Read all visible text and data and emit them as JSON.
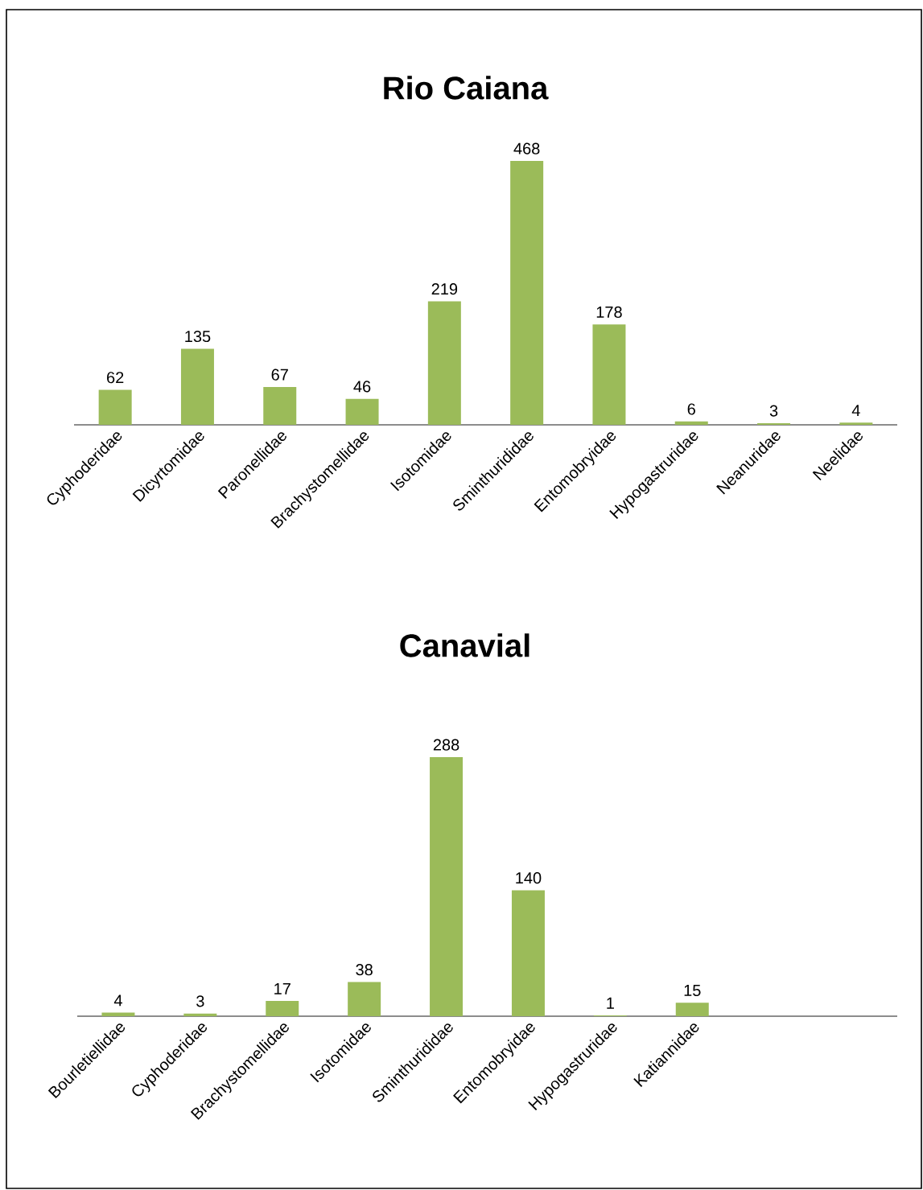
{
  "chart_data": [
    {
      "type": "bar",
      "title": "Rio Caiana",
      "categories": [
        "Cyphoderidae",
        "Dicyrtomidae",
        "Paronellidae",
        "Brachystomellidae",
        "Isotomidae",
        "Sminthurididae",
        "Entomobryidae",
        "Hypogastruridae",
        "Neanuridae",
        "Neelidae"
      ],
      "values": [
        62,
        135,
        67,
        46,
        219,
        468,
        178,
        6,
        3,
        4
      ],
      "color": "#9bbb59",
      "data_labels": true
    },
    {
      "type": "bar",
      "title": "Canavial",
      "categories": [
        "Bourletiellidae",
        "Cyphoderidae",
        "Brachystomellidae",
        "Isotomidae",
        "Sminthurididae",
        "Entomobryidae",
        "Hypogastruridae",
        "Katiannidae",
        null,
        null
      ],
      "values": [
        4,
        3,
        17,
        38,
        288,
        140,
        1,
        15,
        null,
        null
      ],
      "color": "#9bbb59",
      "data_labels": true
    }
  ]
}
